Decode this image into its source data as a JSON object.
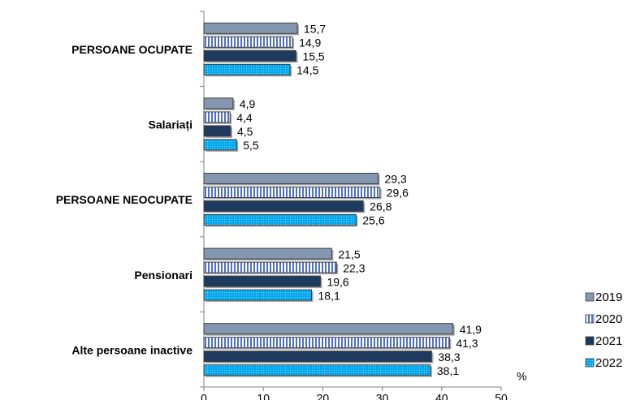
{
  "chart_data": {
    "type": "hbar",
    "categories": [
      "PERSOANE OCUPATE",
      "Salariați",
      "PERSOANE NEOCUPATE",
      "Pensionari",
      "Alte persoane inactive"
    ],
    "series": [
      {
        "name": "2019",
        "color": "#8497b0",
        "pattern": "solid",
        "values": [
          15.7,
          4.9,
          29.3,
          21.5,
          41.9
        ],
        "value_labels": [
          "15,7",
          "4,9",
          "29,3",
          "21,5",
          "41,9"
        ]
      },
      {
        "name": "2020",
        "color": "#4f6fd0",
        "pattern": "stripes",
        "values": [
          14.9,
          4.4,
          29.6,
          22.3,
          41.3
        ],
        "value_labels": [
          "14,9",
          "4,4",
          "29,6",
          "22,3",
          "41,3"
        ]
      },
      {
        "name": "2021",
        "color": "#1f3a5f",
        "pattern": "solid",
        "values": [
          15.5,
          4.5,
          26.8,
          19.6,
          38.3
        ],
        "value_labels": [
          "15,5",
          "4,5",
          "26,8",
          "19,6",
          "38,3"
        ]
      },
      {
        "name": "2022",
        "color": "#00a8f0",
        "pattern": "dots",
        "values": [
          14.5,
          5.5,
          25.6,
          18.1,
          38.1
        ],
        "value_labels": [
          "14,5",
          "5,5",
          "25,6",
          "18,1",
          "38,1"
        ]
      }
    ],
    "xlabel": "%",
    "xlim": [
      0,
      50
    ],
    "xticks": [
      0,
      10,
      20,
      30,
      40,
      50
    ]
  }
}
